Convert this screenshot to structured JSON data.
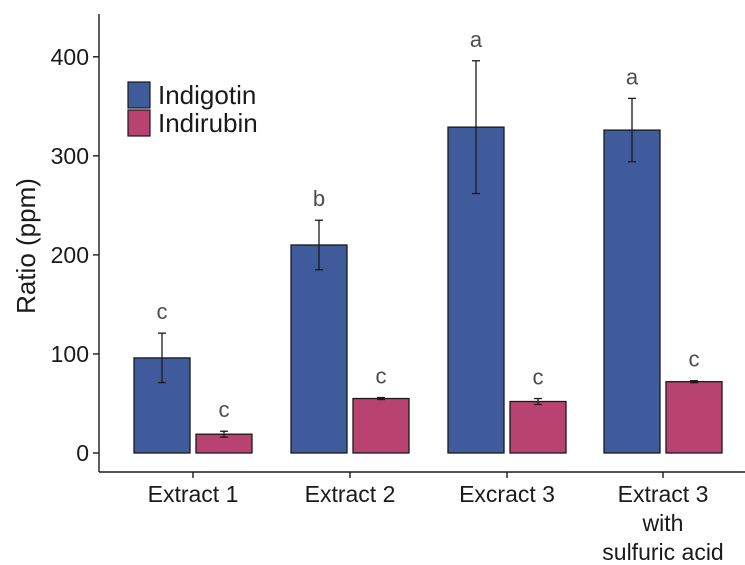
{
  "chart_data": {
    "type": "bar",
    "title": "",
    "xlabel": "",
    "ylabel": "Ratio (ppm)",
    "ylim": [
      0,
      440
    ],
    "yticks": [
      0,
      100,
      200,
      300,
      400
    ],
    "grid": false,
    "legend_position": "top-left",
    "categories": [
      [
        "Extract 1"
      ],
      [
        "Extract 2"
      ],
      [
        "Excract 3"
      ],
      [
        "Extract 3",
        "with",
        "sulfuric acid"
      ]
    ],
    "series": [
      {
        "name": "Indigotin",
        "color": "#3f5b9b",
        "values": [
          96,
          210,
          329,
          326
        ],
        "errors": [
          25,
          25,
          67,
          32
        ],
        "significance": [
          "c",
          "b",
          "a",
          "a"
        ]
      },
      {
        "name": "Indirubin",
        "color": "#b94370",
        "values": [
          19,
          55,
          52,
          72
        ],
        "errors": [
          3,
          1,
          3,
          1
        ],
        "significance": [
          "c",
          "c",
          "c",
          "c"
        ]
      }
    ]
  }
}
